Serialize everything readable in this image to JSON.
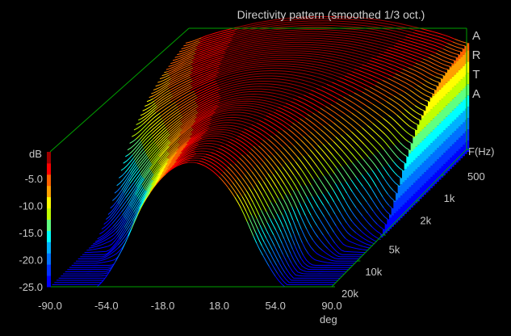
{
  "chart_data": {
    "type": "waterfall-3d",
    "title": "Directivity pattern (smoothed 1/3 oct.)",
    "brand": "ARTA",
    "xlabel": "deg",
    "ylabel": "dB",
    "zlabel": "F(Hz)",
    "xlim": [
      -90,
      90
    ],
    "ylim": [
      -25,
      0
    ],
    "zlim_hz": [
      500,
      20000
    ],
    "x_ticks": [
      "-90.0",
      "-54.0",
      "-18.0",
      "18.0",
      "54.0",
      "90.0"
    ],
    "x_tick_values": [
      -90,
      -54,
      -18,
      18,
      54,
      90
    ],
    "y_ticks": [
      "-5.0",
      "-10.0",
      "-15.0",
      "-20.0",
      "-25.0"
    ],
    "y_tick_values": [
      -5,
      -10,
      -15,
      -20,
      -25
    ],
    "z_ticks": [
      "500",
      "1k",
      "2k",
      "5k",
      "10k",
      "20k"
    ],
    "z_tick_values": [
      500,
      1000,
      2000,
      5000,
      10000,
      20000
    ],
    "colorscale": [
      "#0000ff",
      "#0030ff",
      "#0070ff",
      "#00b0ff",
      "#00ffff",
      "#60ff80",
      "#c0ff00",
      "#ffff00",
      "#ffa000",
      "#ff6000",
      "#ff0000",
      "#a00000"
    ],
    "axis_color": "#00a000",
    "angles_deg": [
      -90,
      -75,
      -60,
      -45,
      -30,
      -15,
      0,
      15,
      30,
      45,
      60,
      75,
      90
    ],
    "frequencies_hz": [
      500,
      700,
      1000,
      1400,
      2000,
      2800,
      4000,
      5600,
      8000,
      11000,
      16000,
      20000
    ],
    "levels_db": [
      [
        -4.9,
        -3.4,
        -2.2,
        -1.2,
        -0.5,
        -0.1,
        0,
        -0.1,
        -0.5,
        -1.2,
        -2.2,
        -3.4,
        -4.9
      ],
      [
        -5.7,
        -4.0,
        -2.6,
        -1.4,
        -0.6,
        -0.2,
        0,
        -0.2,
        -0.6,
        -1.4,
        -2.6,
        -4.0,
        -5.7
      ],
      [
        -6.7,
        -4.7,
        -3.0,
        -1.7,
        -0.7,
        -0.2,
        0,
        -0.2,
        -0.7,
        -1.7,
        -3.0,
        -4.7,
        -6.7
      ],
      [
        -8.4,
        -5.8,
        -3.7,
        -2.1,
        -0.9,
        -0.2,
        0,
        -0.2,
        -0.9,
        -2.1,
        -3.7,
        -5.8,
        -8.4
      ],
      [
        -11.2,
        -7.8,
        -5.0,
        -2.8,
        -1.2,
        -0.3,
        0,
        -0.3,
        -1.2,
        -2.8,
        -5.0,
        -7.8,
        -11.2
      ],
      [
        -16.0,
        -11.3,
        -7.4,
        -4.4,
        -2.2,
        -0.9,
        -0.5,
        -0.9,
        -2.2,
        -4.4,
        -7.4,
        -11.3,
        -16.0
      ],
      [
        -22.1,
        -15.7,
        -10.4,
        -6.3,
        -3.3,
        -1.6,
        -1.0,
        -1.6,
        -3.3,
        -6.3,
        -10.4,
        -15.7,
        -22.1
      ],
      [
        -25,
        -21.1,
        -13.9,
        -8.2,
        -4.2,
        -1.8,
        -1.0,
        -1.8,
        -4.2,
        -8.2,
        -13.9,
        -21.1,
        -25
      ],
      [
        -25,
        -25,
        -19.1,
        -11.4,
        -5.9,
        -2.6,
        -1.5,
        -2.6,
        -5.9,
        -11.4,
        -19.1,
        -25,
        -25
      ],
      [
        -25,
        -25,
        -24.0,
        -14.1,
        -7.1,
        -2.9,
        -1.5,
        -2.9,
        -7.1,
        -14.1,
        -24.0,
        -25,
        -25
      ],
      [
        -25,
        -25,
        -25,
        -17.5,
        -8.9,
        -3.7,
        -2.0,
        -3.7,
        -8.9,
        -17.5,
        -25,
        -25,
        -25
      ],
      [
        -25,
        -25,
        -25,
        -18.7,
        -9.4,
        -3.9,
        -2.0,
        -3.9,
        -9.4,
        -18.7,
        -25,
        -25,
        -25
      ]
    ]
  }
}
